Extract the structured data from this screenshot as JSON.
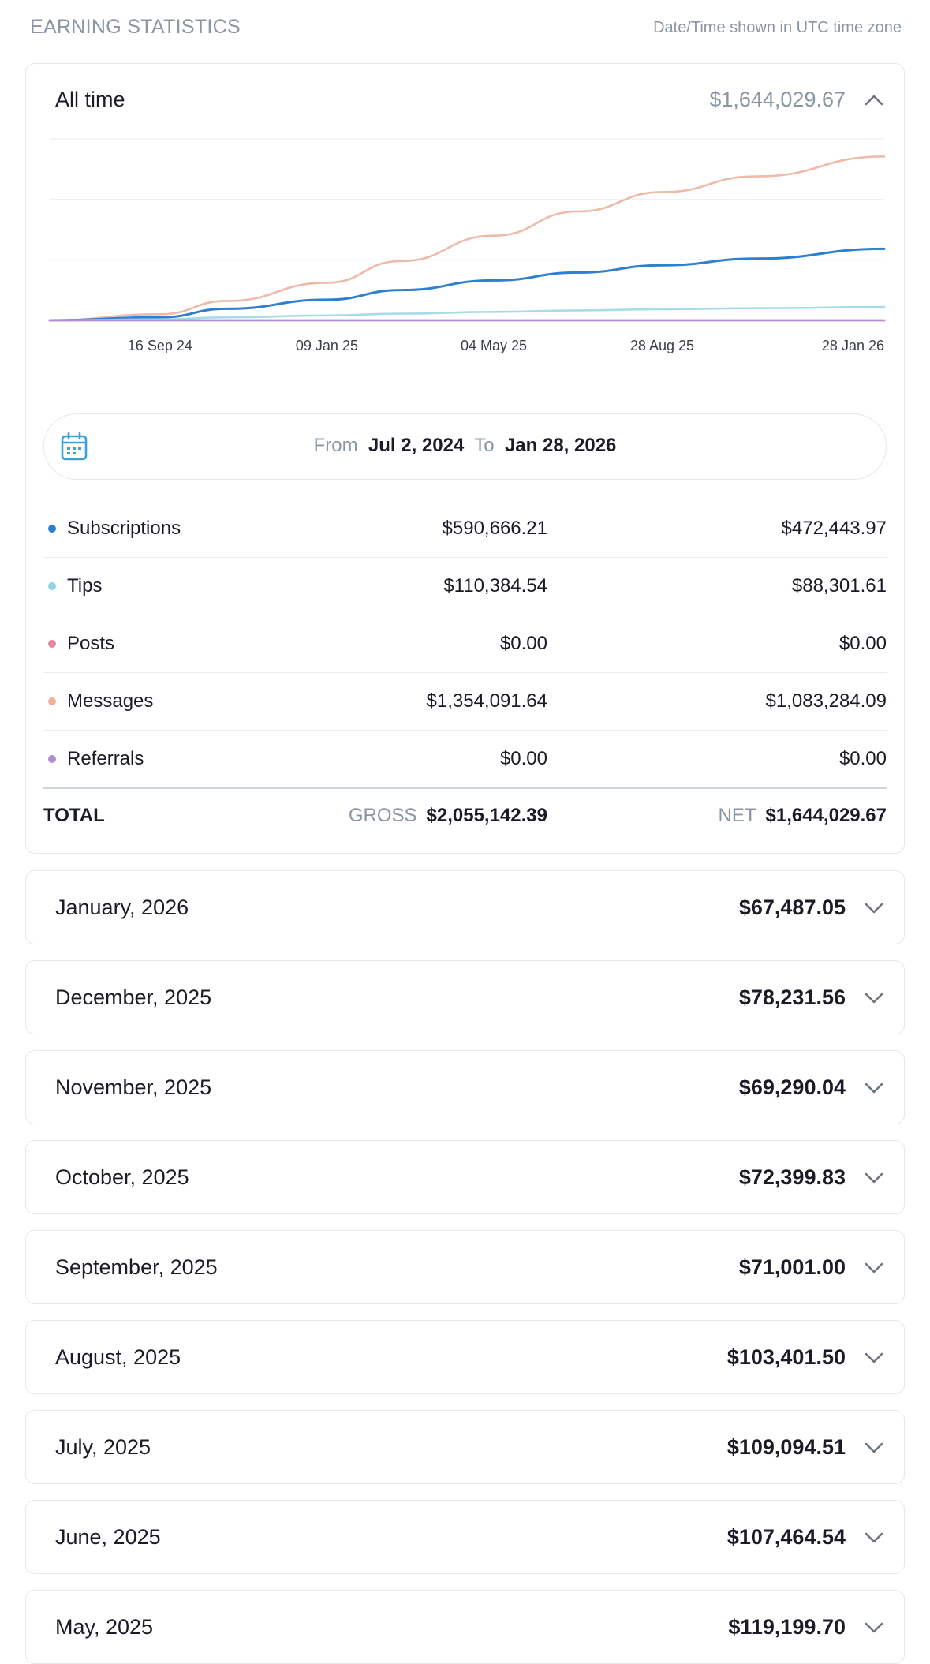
{
  "header": {
    "title": "EARNING STATISTICS",
    "note": "Date/Time shown in UTC time zone"
  },
  "all_time": {
    "label": "All time",
    "amount": "$1,644,029.67"
  },
  "chart_data": {
    "type": "line",
    "x_ticks": [
      "16 Sep 24",
      "09 Jan 25",
      "04 May 25",
      "28 Aug 25",
      "28 Jan 26"
    ],
    "x": [
      "2024-07-02",
      "2024-09-16",
      "2024-11-01",
      "2025-01-09",
      "2025-03-01",
      "2025-05-04",
      "2025-07-01",
      "2025-08-28",
      "2025-11-01",
      "2026-01-28"
    ],
    "series": [
      {
        "name": "Messages",
        "color": "#efb9a7",
        "values": [
          0,
          50000,
          160000,
          310000,
          490000,
          700000,
          900000,
          1060000,
          1190000,
          1354091.64
        ]
      },
      {
        "name": "Subscriptions",
        "color": "#2f7fd1",
        "values": [
          0,
          25000,
          95000,
          170000,
          250000,
          330000,
          395000,
          455000,
          510000,
          590666.21
        ]
      },
      {
        "name": "Tips",
        "color": "#a6dbe8",
        "values": [
          0,
          8000,
          25000,
          40000,
          55000,
          70000,
          82000,
          92000,
          100000,
          110384.54
        ]
      },
      {
        "name": "Posts",
        "color": "#e6879b",
        "values": [
          0,
          0,
          0,
          0,
          0,
          0,
          0,
          0,
          0,
          0
        ]
      },
      {
        "name": "Referrals",
        "color": "#b48bd6",
        "values": [
          0,
          0,
          0,
          0,
          0,
          0,
          0,
          0,
          0,
          0
        ]
      }
    ],
    "ylim": [
      0,
      1500000
    ],
    "grid": true
  },
  "range": {
    "from_label": "From",
    "from_value": "Jul 2, 2024",
    "to_label": "To",
    "to_value": "Jan 28, 2026"
  },
  "breakdown": [
    {
      "name": "Subscriptions",
      "gross": "$590,666.21",
      "net": "$472,443.97",
      "color": "#2f7fd1"
    },
    {
      "name": "Tips",
      "gross": "$110,384.54",
      "net": "$88,301.61",
      "color": "#8fd5e3"
    },
    {
      "name": "Posts",
      "gross": "$0.00",
      "net": "$0.00",
      "color": "#e6879b"
    },
    {
      "name": "Messages",
      "gross": "$1,354,091.64",
      "net": "$1,083,284.09",
      "color": "#efb09b"
    },
    {
      "name": "Referrals",
      "gross": "$0.00",
      "net": "$0.00",
      "color": "#b48bd6"
    }
  ],
  "total": {
    "label": "TOTAL",
    "gross_label": "GROSS",
    "gross_value": "$2,055,142.39",
    "net_label": "NET",
    "net_value": "$1,644,029.67"
  },
  "months": [
    {
      "label": "January, 2026",
      "amount": "$67,487.05"
    },
    {
      "label": "December, 2025",
      "amount": "$78,231.56"
    },
    {
      "label": "November, 2025",
      "amount": "$69,290.04"
    },
    {
      "label": "October, 2025",
      "amount": "$72,399.83"
    },
    {
      "label": "September, 2025",
      "amount": "$71,001.00"
    },
    {
      "label": "August, 2025",
      "amount": "$103,401.50"
    },
    {
      "label": "July, 2025",
      "amount": "$109,094.51"
    },
    {
      "label": "June, 2025",
      "amount": "$107,464.54"
    },
    {
      "label": "May, 2025",
      "amount": "$119,199.70"
    }
  ],
  "colors": {
    "accent": "#2f7fd1",
    "muted": "#8a96a3",
    "border": "#e3e7ec"
  },
  "icons": {
    "calendar": "calendar-icon",
    "collapse": "chevron-up-icon",
    "expand": "chevron-down-icon"
  }
}
